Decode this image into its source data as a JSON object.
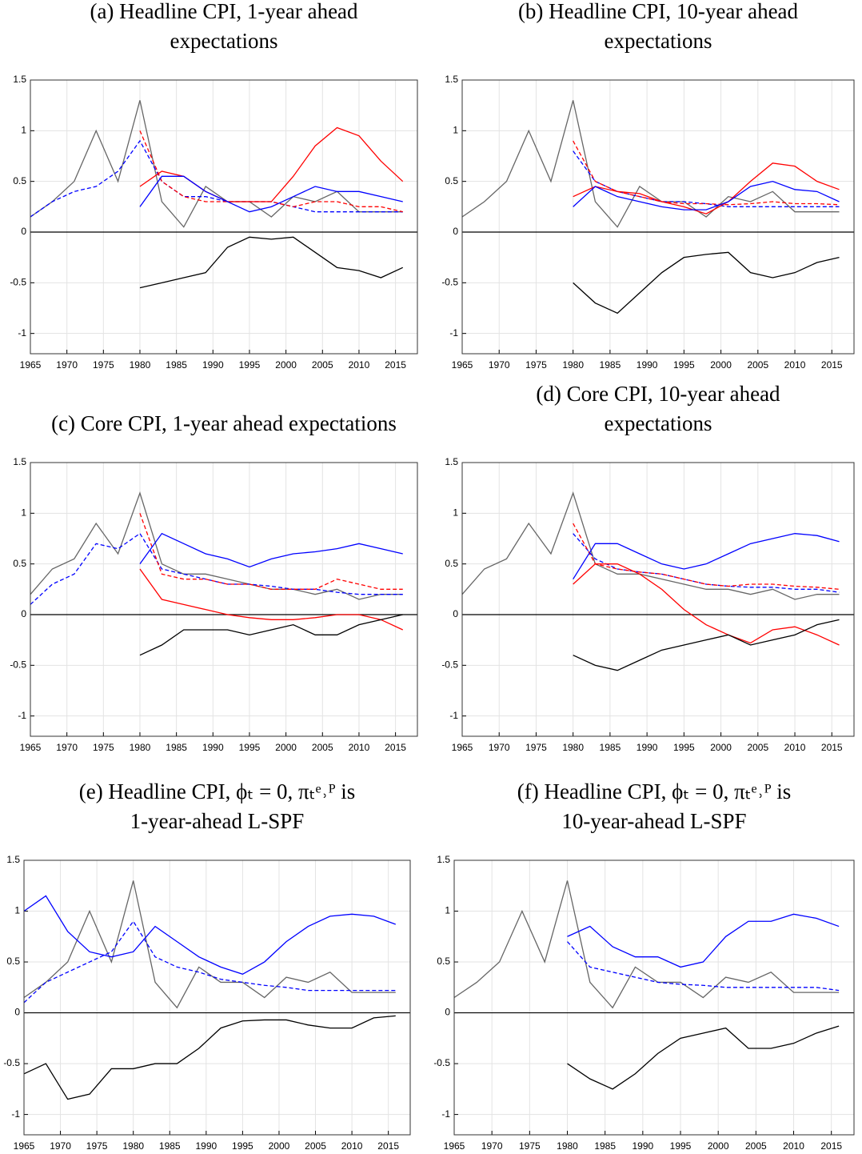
{
  "chart_data": [
    {
      "type": "line",
      "title": [
        "(a) Headline CPI, 1-year ahead",
        "expectations"
      ],
      "x": [
        1965,
        1968,
        1971,
        1974,
        1977,
        1980,
        1983,
        1986,
        1989,
        1992,
        1995,
        1998,
        2001,
        2004,
        2007,
        2010,
        2013,
        2016
      ],
      "xlim": [
        1965,
        2018
      ],
      "xticks": [
        1965,
        1970,
        1975,
        1980,
        1985,
        1990,
        1995,
        2000,
        2005,
        2010,
        2015
      ],
      "ylim": [
        -1.2,
        1.5
      ],
      "yticks": [
        -1,
        -0.5,
        0,
        0.5,
        1,
        1.5
      ],
      "grid": true,
      "hline": 0,
      "series": [
        {
          "color": "#666666",
          "dash": false,
          "values": [
            0.15,
            0.3,
            0.5,
            1.0,
            0.5,
            1.3,
            0.3,
            0.05,
            0.45,
            0.3,
            0.3,
            0.15,
            0.35,
            0.3,
            0.4,
            0.2,
            0.2,
            0.2
          ]
        },
        {
          "color": "#0000ff",
          "dash": true,
          "values": [
            0.15,
            0.3,
            0.4,
            0.45,
            0.6,
            0.9,
            0.5,
            0.35,
            0.35,
            0.3,
            0.3,
            0.3,
            0.25,
            0.2,
            0.2,
            0.2,
            0.2,
            0.2
          ]
        },
        {
          "color": "#ff0000",
          "dash": true,
          "values": [
            null,
            null,
            null,
            null,
            null,
            1.0,
            0.5,
            0.35,
            0.3,
            0.3,
            0.3,
            0.3,
            0.25,
            0.3,
            0.3,
            0.25,
            0.25,
            0.2
          ]
        },
        {
          "color": "#ff0000",
          "dash": false,
          "values": [
            null,
            null,
            null,
            null,
            null,
            0.45,
            0.6,
            0.55,
            0.4,
            0.3,
            0.3,
            0.3,
            0.55,
            0.85,
            1.03,
            0.95,
            0.7,
            0.5
          ]
        },
        {
          "color": "#0000ff",
          "dash": false,
          "values": [
            null,
            null,
            null,
            null,
            null,
            0.25,
            0.55,
            0.55,
            0.4,
            0.3,
            0.2,
            0.25,
            0.35,
            0.45,
            0.4,
            0.4,
            0.35,
            0.3
          ]
        },
        {
          "color": "#000000",
          "dash": false,
          "values": [
            null,
            null,
            null,
            null,
            null,
            -0.55,
            -0.5,
            -0.45,
            -0.4,
            -0.15,
            -0.05,
            -0.07,
            -0.05,
            -0.2,
            -0.35,
            -0.38,
            -0.45,
            -0.35
          ]
        }
      ]
    },
    {
      "type": "line",
      "title": [
        "(b) Headline CPI, 10-year ahead",
        "expectations"
      ],
      "x": [
        1965,
        1968,
        1971,
        1974,
        1977,
        1980,
        1983,
        1986,
        1989,
        1992,
        1995,
        1998,
        2001,
        2004,
        2007,
        2010,
        2013,
        2016
      ],
      "xlim": [
        1965,
        2018
      ],
      "xticks": [
        1965,
        1970,
        1975,
        1980,
        1985,
        1990,
        1995,
        2000,
        2005,
        2010,
        2015
      ],
      "ylim": [
        -1.2,
        1.5
      ],
      "yticks": [
        -1,
        -0.5,
        0,
        0.5,
        1,
        1.5
      ],
      "grid": true,
      "hline": 0,
      "series": [
        {
          "color": "#666666",
          "dash": false,
          "values": [
            0.15,
            0.3,
            0.5,
            1.0,
            0.5,
            1.3,
            0.3,
            0.05,
            0.45,
            0.3,
            0.3,
            0.15,
            0.35,
            0.3,
            0.4,
            0.2,
            0.2,
            0.2
          ]
        },
        {
          "color": "#0000ff",
          "dash": true,
          "values": [
            null,
            null,
            null,
            null,
            null,
            0.8,
            0.5,
            0.4,
            0.35,
            0.3,
            0.3,
            0.28,
            0.25,
            0.25,
            0.25,
            0.25,
            0.25,
            0.25
          ]
        },
        {
          "color": "#ff0000",
          "dash": true,
          "values": [
            null,
            null,
            null,
            null,
            null,
            0.9,
            0.5,
            0.4,
            0.35,
            0.3,
            0.28,
            0.28,
            0.27,
            0.28,
            0.3,
            0.28,
            0.28,
            0.27
          ]
        },
        {
          "color": "#ff0000",
          "dash": false,
          "values": [
            null,
            null,
            null,
            null,
            null,
            0.35,
            0.45,
            0.4,
            0.38,
            0.3,
            0.25,
            0.18,
            0.3,
            0.5,
            0.68,
            0.65,
            0.5,
            0.42
          ]
        },
        {
          "color": "#0000ff",
          "dash": false,
          "values": [
            null,
            null,
            null,
            null,
            null,
            0.25,
            0.45,
            0.35,
            0.3,
            0.25,
            0.22,
            0.22,
            0.3,
            0.45,
            0.5,
            0.42,
            0.4,
            0.3
          ]
        },
        {
          "color": "#000000",
          "dash": false,
          "values": [
            null,
            null,
            null,
            null,
            null,
            -0.5,
            -0.7,
            -0.8,
            -0.6,
            -0.4,
            -0.25,
            -0.22,
            -0.2,
            -0.4,
            -0.45,
            -0.4,
            -0.3,
            -0.25
          ]
        }
      ]
    },
    {
      "type": "line",
      "title": [
        "(c) Core CPI, 1-year ahead expectations"
      ],
      "x": [
        1965,
        1968,
        1971,
        1974,
        1977,
        1980,
        1983,
        1986,
        1989,
        1992,
        1995,
        1998,
        2001,
        2004,
        2007,
        2010,
        2013,
        2016
      ],
      "xlim": [
        1965,
        2018
      ],
      "xticks": [
        1965,
        1970,
        1975,
        1980,
        1985,
        1990,
        1995,
        2000,
        2005,
        2010,
        2015
      ],
      "ylim": [
        -1.2,
        1.5
      ],
      "yticks": [
        -1,
        -0.5,
        0,
        0.5,
        1,
        1.5
      ],
      "grid": true,
      "hline": 0,
      "series": [
        {
          "color": "#666666",
          "dash": false,
          "values": [
            0.2,
            0.45,
            0.55,
            0.9,
            0.6,
            1.2,
            0.5,
            0.4,
            0.4,
            0.35,
            0.3,
            0.25,
            0.25,
            0.2,
            0.25,
            0.15,
            0.2,
            0.2
          ]
        },
        {
          "color": "#0000ff",
          "dash": true,
          "values": [
            0.1,
            0.3,
            0.4,
            0.7,
            0.65,
            0.8,
            0.45,
            0.4,
            0.35,
            0.3,
            0.3,
            0.28,
            0.25,
            0.25,
            0.22,
            0.2,
            0.2,
            0.2
          ]
        },
        {
          "color": "#ff0000",
          "dash": true,
          "values": [
            null,
            null,
            null,
            null,
            null,
            1.0,
            0.4,
            0.35,
            0.35,
            0.3,
            0.3,
            0.25,
            0.25,
            0.25,
            0.35,
            0.3,
            0.25,
            0.25
          ]
        },
        {
          "color": "#ff0000",
          "dash": false,
          "values": [
            null,
            null,
            null,
            null,
            null,
            0.45,
            0.15,
            0.1,
            0.05,
            0.0,
            -0.03,
            -0.05,
            -0.05,
            -0.03,
            0.0,
            0.0,
            -0.05,
            -0.15
          ]
        },
        {
          "color": "#0000ff",
          "dash": false,
          "values": [
            null,
            null,
            null,
            null,
            null,
            0.5,
            0.8,
            0.7,
            0.6,
            0.55,
            0.47,
            0.55,
            0.6,
            0.62,
            0.65,
            0.7,
            0.65,
            0.6
          ]
        },
        {
          "color": "#000000",
          "dash": false,
          "values": [
            null,
            null,
            null,
            null,
            null,
            -0.4,
            -0.3,
            -0.15,
            -0.15,
            -0.15,
            -0.2,
            -0.15,
            -0.1,
            -0.2,
            -0.2,
            -0.1,
            -0.05,
            0.0
          ]
        }
      ]
    },
    {
      "type": "line",
      "title": [
        "(d) Core CPI, 10-year ahead",
        "expectations"
      ],
      "x": [
        1965,
        1968,
        1971,
        1974,
        1977,
        1980,
        1983,
        1986,
        1989,
        1992,
        1995,
        1998,
        2001,
        2004,
        2007,
        2010,
        2013,
        2016
      ],
      "xlim": [
        1965,
        2018
      ],
      "xticks": [
        1965,
        1970,
        1975,
        1980,
        1985,
        1990,
        1995,
        2000,
        2005,
        2010,
        2015
      ],
      "ylim": [
        -1.2,
        1.5
      ],
      "yticks": [
        -1,
        -0.5,
        0,
        0.5,
        1,
        1.5
      ],
      "grid": true,
      "hline": 0,
      "series": [
        {
          "color": "#666666",
          "dash": false,
          "values": [
            0.2,
            0.45,
            0.55,
            0.9,
            0.6,
            1.2,
            0.5,
            0.4,
            0.4,
            0.35,
            0.3,
            0.25,
            0.25,
            0.2,
            0.25,
            0.15,
            0.2,
            0.2
          ]
        },
        {
          "color": "#0000ff",
          "dash": true,
          "values": [
            null,
            null,
            null,
            null,
            null,
            0.8,
            0.55,
            0.45,
            0.42,
            0.4,
            0.35,
            0.3,
            0.28,
            0.27,
            0.27,
            0.25,
            0.25,
            0.22
          ]
        },
        {
          "color": "#ff0000",
          "dash": true,
          "values": [
            null,
            null,
            null,
            null,
            null,
            0.9,
            0.5,
            0.45,
            0.42,
            0.4,
            0.35,
            0.3,
            0.28,
            0.3,
            0.3,
            0.28,
            0.27,
            0.25
          ]
        },
        {
          "color": "#ff0000",
          "dash": false,
          "values": [
            null,
            null,
            null,
            null,
            null,
            0.3,
            0.5,
            0.5,
            0.4,
            0.25,
            0.05,
            -0.1,
            -0.2,
            -0.28,
            -0.15,
            -0.12,
            -0.2,
            -0.3
          ]
        },
        {
          "color": "#0000ff",
          "dash": false,
          "values": [
            null,
            null,
            null,
            null,
            null,
            0.35,
            0.7,
            0.7,
            0.6,
            0.5,
            0.45,
            0.5,
            0.6,
            0.7,
            0.75,
            0.8,
            0.78,
            0.72
          ]
        },
        {
          "color": "#000000",
          "dash": false,
          "values": [
            null,
            null,
            null,
            null,
            null,
            -0.4,
            -0.5,
            -0.55,
            -0.45,
            -0.35,
            -0.3,
            -0.25,
            -0.2,
            -0.3,
            -0.25,
            -0.2,
            -0.1,
            -0.05
          ]
        }
      ]
    },
    {
      "type": "line",
      "title": [
        "(e) Headline CPI, ϕₜ = 0, πₜᵉ˒ᴾ is",
        "1-year-ahead L-SPF"
      ],
      "x": [
        1965,
        1968,
        1971,
        1974,
        1977,
        1980,
        1983,
        1986,
        1989,
        1992,
        1995,
        1998,
        2001,
        2004,
        2007,
        2010,
        2013,
        2016
      ],
      "xlim": [
        1965,
        2018
      ],
      "xticks": [
        1965,
        1970,
        1975,
        1980,
        1985,
        1990,
        1995,
        2000,
        2005,
        2010,
        2015
      ],
      "ylim": [
        -1.2,
        1.5
      ],
      "yticks": [
        -1,
        -0.5,
        0,
        0.5,
        1,
        1.5
      ],
      "grid": true,
      "hline": 0,
      "series": [
        {
          "color": "#666666",
          "dash": false,
          "values": [
            0.15,
            0.3,
            0.5,
            1.0,
            0.5,
            1.3,
            0.3,
            0.05,
            0.45,
            0.3,
            0.3,
            0.15,
            0.35,
            0.3,
            0.4,
            0.2,
            0.2,
            0.2
          ]
        },
        {
          "color": "#0000ff",
          "dash": false,
          "values": [
            1.0,
            1.15,
            0.8,
            0.6,
            0.55,
            0.6,
            0.85,
            0.7,
            0.55,
            0.45,
            0.38,
            0.5,
            0.7,
            0.85,
            0.95,
            0.97,
            0.95,
            0.87
          ]
        },
        {
          "color": "#0000ff",
          "dash": true,
          "values": [
            0.1,
            0.3,
            0.4,
            0.5,
            0.6,
            0.9,
            0.55,
            0.45,
            0.4,
            0.33,
            0.3,
            0.27,
            0.25,
            0.22,
            0.22,
            0.22,
            0.22,
            0.22
          ]
        },
        {
          "color": "#000000",
          "dash": false,
          "values": [
            -0.6,
            -0.5,
            -0.85,
            -0.8,
            -0.55,
            -0.55,
            -0.5,
            -0.5,
            -0.35,
            -0.15,
            -0.08,
            -0.07,
            -0.07,
            -0.12,
            -0.15,
            -0.15,
            -0.05,
            -0.03
          ]
        }
      ]
    },
    {
      "type": "line",
      "title": [
        "(f) Headline CPI, ϕₜ = 0, πₜᵉ˒ᴾ is",
        "10-year-ahead L-SPF"
      ],
      "x": [
        1965,
        1968,
        1971,
        1974,
        1977,
        1980,
        1983,
        1986,
        1989,
        1992,
        1995,
        1998,
        2001,
        2004,
        2007,
        2010,
        2013,
        2016
      ],
      "xlim": [
        1965,
        2018
      ],
      "xticks": [
        1965,
        1970,
        1975,
        1980,
        1985,
        1990,
        1995,
        2000,
        2005,
        2010,
        2015
      ],
      "ylim": [
        -1.2,
        1.5
      ],
      "yticks": [
        -1,
        -0.5,
        0,
        0.5,
        1,
        1.5
      ],
      "grid": true,
      "hline": 0,
      "series": [
        {
          "color": "#666666",
          "dash": false,
          "values": [
            0.15,
            0.3,
            0.5,
            1.0,
            0.5,
            1.3,
            0.3,
            0.05,
            0.45,
            0.3,
            0.3,
            0.15,
            0.35,
            0.3,
            0.4,
            0.2,
            0.2,
            0.2
          ]
        },
        {
          "color": "#0000ff",
          "dash": false,
          "values": [
            null,
            null,
            null,
            null,
            null,
            0.75,
            0.85,
            0.65,
            0.55,
            0.55,
            0.45,
            0.5,
            0.75,
            0.9,
            0.9,
            0.97,
            0.93,
            0.85
          ]
        },
        {
          "color": "#0000ff",
          "dash": true,
          "values": [
            null,
            null,
            null,
            null,
            null,
            0.7,
            0.45,
            0.4,
            0.35,
            0.3,
            0.28,
            0.27,
            0.25,
            0.25,
            0.25,
            0.25,
            0.25,
            0.22
          ]
        },
        {
          "color": "#000000",
          "dash": false,
          "values": [
            null,
            null,
            null,
            null,
            null,
            -0.5,
            -0.65,
            -0.75,
            -0.6,
            -0.4,
            -0.25,
            -0.2,
            -0.15,
            -0.35,
            -0.35,
            -0.3,
            -0.2,
            -0.13
          ]
        }
      ]
    }
  ]
}
